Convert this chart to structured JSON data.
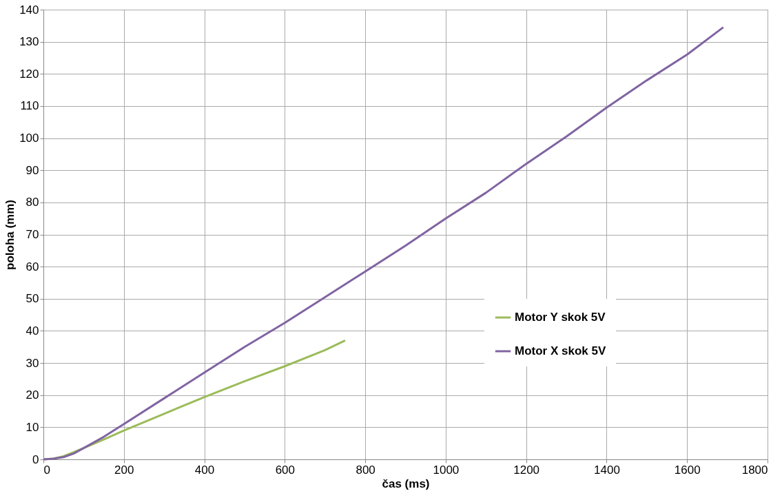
{
  "chart_data": {
    "type": "line",
    "xlabel": "čas (ms)",
    "ylabel": "poloha (mm)",
    "xlim": [
      0,
      1800
    ],
    "xticks": [
      0,
      200,
      400,
      600,
      800,
      1000,
      1200,
      1400,
      1600,
      1800
    ],
    "ylim": [
      0,
      140
    ],
    "yticks": [
      0,
      10,
      20,
      30,
      40,
      50,
      60,
      70,
      80,
      90,
      100,
      110,
      120,
      130,
      140
    ],
    "grid": true,
    "legend": "right",
    "marker": "none",
    "line_style": "solid",
    "series": [
      {
        "name": "Motor Y skok 5V",
        "color": "#9bbb59",
        "x": [
          0,
          25,
          50,
          75,
          100,
          150,
          200,
          300,
          400,
          500,
          600,
          700,
          750
        ],
        "values": [
          0,
          0.2,
          1,
          2.2,
          3.5,
          6.2,
          9,
          14.2,
          19.4,
          24.3,
          29,
          34,
          37
        ]
      },
      {
        "name": "Motor X skok 5V",
        "color": "#8064a2",
        "x": [
          0,
          25,
          50,
          75,
          100,
          150,
          200,
          300,
          400,
          500,
          600,
          700,
          800,
          900,
          1000,
          1100,
          1200,
          1300,
          1400,
          1500,
          1600,
          1690
        ],
        "values": [
          0,
          0.2,
          0.7,
          1.8,
          3.5,
          7,
          11,
          19,
          27,
          35,
          42.5,
          50.5,
          58.5,
          66.5,
          75,
          83,
          92,
          100.5,
          109.5,
          118,
          126,
          134.5
        ]
      }
    ]
  }
}
